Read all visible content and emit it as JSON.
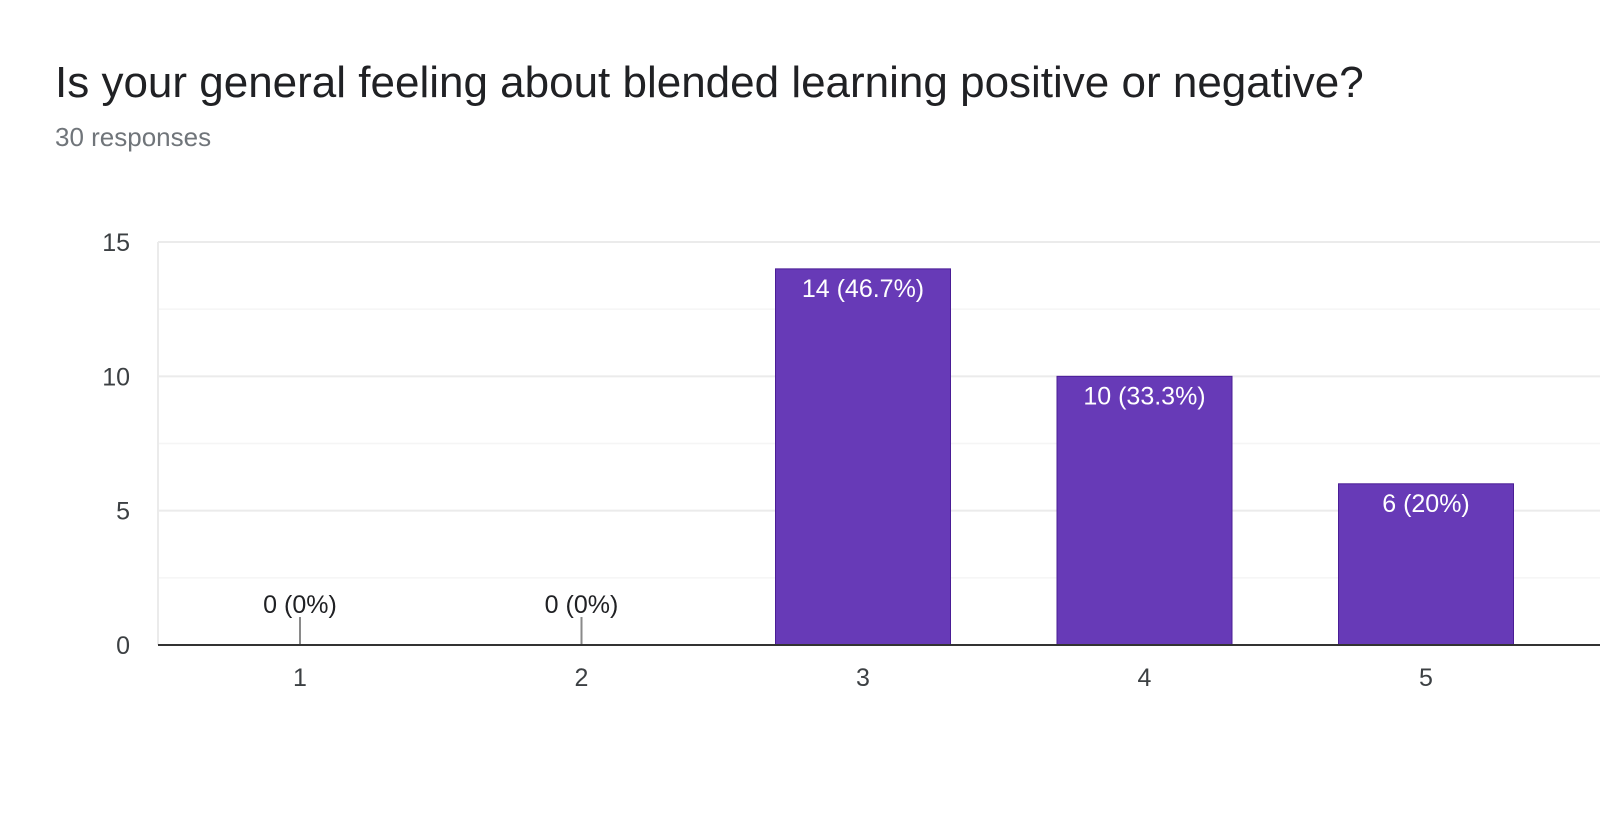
{
  "title": "Is your general feeling about blended learning positive or negative?",
  "response_count": "30 responses",
  "colors": {
    "bar": "#673ab7",
    "bar_label": "#ffffff",
    "outside_label": "#202124",
    "axis_text": "#3c4043",
    "gridline": "#ebebeb",
    "minor_gridline": "#f5f5f5",
    "baseline": "#333333"
  },
  "chart_data": {
    "type": "bar",
    "title": "Is your general feeling about blended learning positive or negative?",
    "categories": [
      "1",
      "2",
      "3",
      "4",
      "5"
    ],
    "values": [
      0,
      0,
      14,
      10,
      6
    ],
    "data_labels": [
      "0 (0%)",
      "0 (0%)",
      "14 (46.7%)",
      "10 (33.3%)",
      "6 (20%)"
    ],
    "yticks": [
      0,
      5,
      10,
      15
    ],
    "ylim": [
      0,
      15
    ],
    "xlabel": "",
    "ylabel": "",
    "grid": true,
    "legend": "none"
  }
}
